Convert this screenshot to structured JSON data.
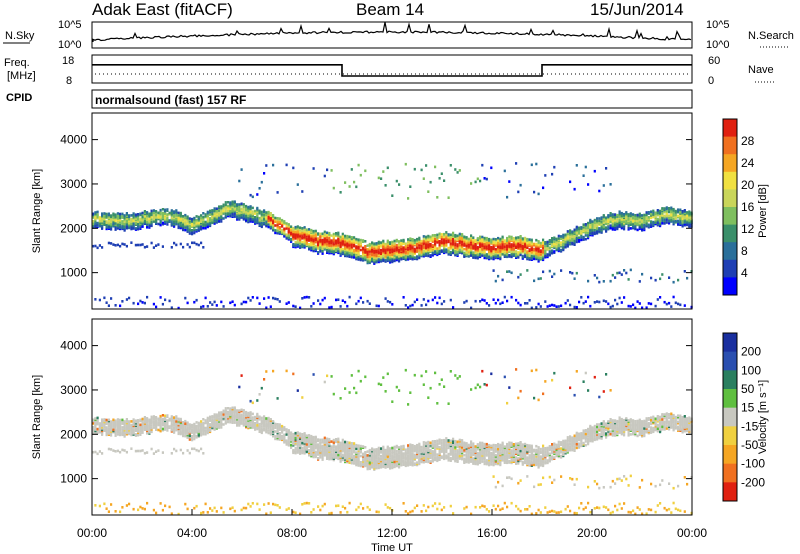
{
  "header": {
    "station": "Adak East (fitACF)",
    "beam": "Beam 14",
    "date": "15/Jun/2014"
  },
  "noise_panel": {
    "left_label": "N.Sky",
    "left_ticks": [
      "10^5",
      "10^0"
    ],
    "right_label": "N.Search",
    "right_ticks": [
      "10^5",
      "10^0"
    ]
  },
  "freq_panel": {
    "left_label_top": "Freq.",
    "left_label_bottom": "[MHz]",
    "left_ticks": [
      "18",
      "8"
    ],
    "right_label": "Nave",
    "right_ticks": [
      "60",
      "0"
    ]
  },
  "cpid": {
    "label": "CPID",
    "value": "normalsound (fast) 157 RF"
  },
  "chart_data": [
    {
      "type": "heatmap",
      "quantity": "Power",
      "ylabel": "Slant Range [km]",
      "ylim": [
        180,
        4600
      ],
      "yticks": [
        1000,
        2000,
        3000,
        4000
      ],
      "colorbar_label": "Power [dB]",
      "colorbar_ticks": [
        "4",
        "8",
        "12",
        "16",
        "20",
        "24",
        "28"
      ],
      "colorbar_colors": [
        "#0000ff",
        "#1f3fb4",
        "#2a6f9a",
        "#3a8f6a",
        "#7fbf5f",
        "#c9d55a",
        "#f0e040",
        "#f5a623",
        "#f07020",
        "#e02010"
      ],
      "echo_bands": [
        {
          "t": [
            0,
            1.5,
            3,
            4,
            5.5,
            7,
            8,
            9,
            10,
            11,
            12,
            13,
            14,
            15,
            16,
            17,
            18,
            19,
            20,
            21,
            22,
            23,
            24
          ],
          "range": [
            2250,
            2200,
            2350,
            2100,
            2500,
            2250,
            1900,
            1750,
            1700,
            1500,
            1550,
            1600,
            1750,
            1650,
            1600,
            1650,
            1550,
            1800,
            2100,
            2250,
            2200,
            2350,
            2250
          ]
        }
      ]
    },
    {
      "type": "heatmap",
      "quantity": "Velocity",
      "ylabel": "Slant Range [km]",
      "xlabel": "Time UT",
      "ylim": [
        180,
        4600
      ],
      "yticks": [
        1000,
        2000,
        3000,
        4000
      ],
      "xticks": [
        "00:00",
        "04:00",
        "08:00",
        "12:00",
        "16:00",
        "20:00",
        "00:00"
      ],
      "colorbar_label": "Velocity [m s⁻¹]",
      "colorbar_ticks": [
        "200",
        "100",
        "50",
        "15",
        "-15",
        "-50",
        "-100",
        "-200"
      ],
      "colorbar_colors": [
        "#1a2f9f",
        "#2a4fb0",
        "#2a7f5f",
        "#5fbf3f",
        "#c8c8c0",
        "#f0d040",
        "#f5a623",
        "#f07020",
        "#e02010"
      ]
    }
  ],
  "freq_series": {
    "x_hours": [
      0,
      10,
      10,
      18,
      18,
      24
    ],
    "freq_mhz": [
      14.5,
      14.5,
      10.5,
      10.5,
      14.5,
      14.5
    ]
  }
}
